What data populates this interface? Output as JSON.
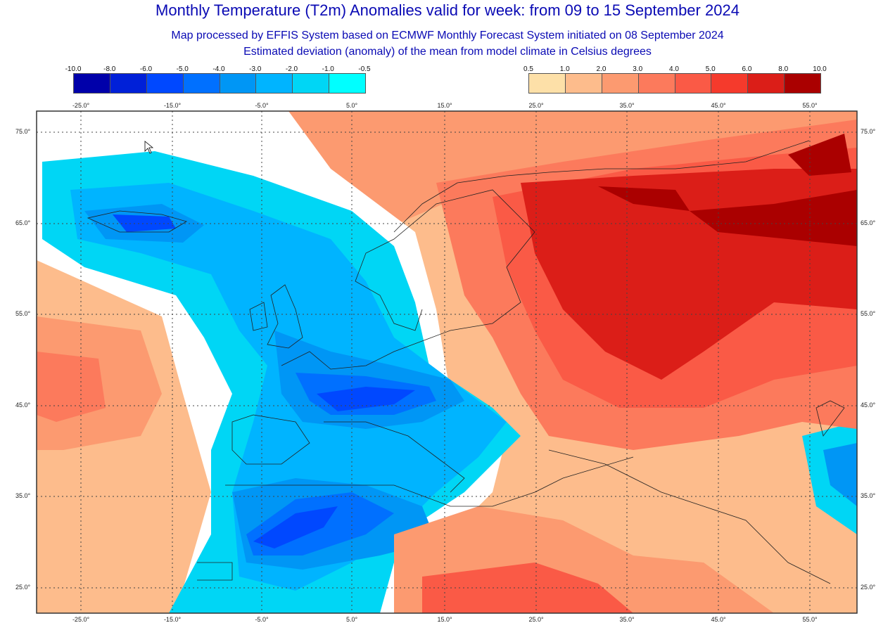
{
  "title": "Monthly Temperature (T2m) Anomalies valid for week: from 09 to 15 September 2024",
  "subtitle1": "Map processed by EFFIS System based on ECMWF Monthly Forecast System initiated on 08 September 2024",
  "subtitle2": "Estimated deviation (anomaly) of the mean from model climate in Celsius degrees",
  "legend_negative": {
    "labels": [
      "-10.0",
      "-8.0",
      "-6.0",
      "-5.0",
      "-4.0",
      "-3.0",
      "-2.0",
      "-1.0",
      "-0.5"
    ],
    "colors": [
      "#0000aa",
      "#0020d8",
      "#0048ff",
      "#0070ff",
      "#0096f5",
      "#00b4ff",
      "#00d6f5",
      "#00ffff"
    ]
  },
  "legend_positive": {
    "labels": [
      "0.5",
      "1.0",
      "2.0",
      "3.0",
      "4.0",
      "5.0",
      "6.0",
      "8.0",
      "10.0"
    ],
    "colors": [
      "#fde0a8",
      "#fdbc8c",
      "#fc9a70",
      "#fc7a5c",
      "#fa5a46",
      "#f53a2c",
      "#db1e18",
      "#aa0000"
    ]
  },
  "lon_labels": [
    "-25.0°",
    "-15.0°",
    "-5.0°",
    "5.0°",
    "15.0°",
    "25.0°",
    "35.0°",
    "45.0°",
    "55.0°"
  ],
  "lat_labels": [
    "75.0°",
    "65.0°",
    "55.0°",
    "45.0°",
    "35.0°",
    "25.0°"
  ]
}
